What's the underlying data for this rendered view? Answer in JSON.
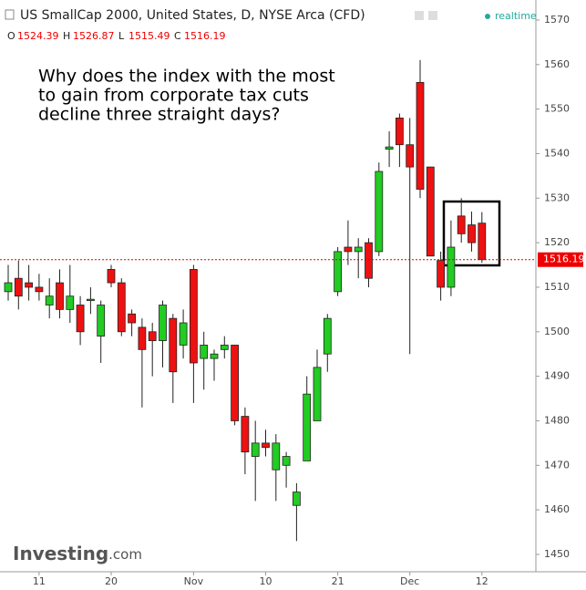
{
  "chart_data": {
    "type": "candlestick",
    "title": "US SmallCap 2000, United States, D, NYSE Arca (CFD)",
    "status": "realtime",
    "ohlc_labels": [
      "O",
      "H",
      "L",
      "C"
    ],
    "annotation": [
      "Why does the index with the most",
      "to gain from corporate tax cuts",
      "decline three straight days?"
    ],
    "watermark": [
      "Investing",
      ".com"
    ],
    "categories": [
      null,
      null,
      null,
      "11",
      null,
      null,
      null,
      null,
      null,
      null,
      "20",
      null,
      null,
      null,
      null,
      null,
      null,
      null,
      "Nov",
      null,
      null,
      null,
      null,
      null,
      null,
      "10",
      null,
      null,
      null,
      null,
      null,
      null,
      "21",
      null,
      null,
      null,
      null,
      null,
      null,
      "Dec",
      null,
      null,
      null,
      null,
      null,
      null,
      "12"
    ],
    "open": [
      1509,
      1512,
      1511,
      1510,
      1506,
      1511,
      1505,
      1506,
      1507,
      1499,
      1514,
      1511,
      1504,
      1501,
      1500,
      1498,
      1503,
      1497,
      1514,
      1494,
      1494,
      1496,
      1497,
      1481,
      1472,
      1475,
      1469,
      1470,
      1461,
      1471,
      1480,
      1495,
      1509,
      1519,
      1518,
      1520,
      1518,
      1541,
      1548,
      1542,
      1556,
      1537,
      1516,
      1510,
      1526,
      1524,
      1524.39
    ],
    "high": [
      1515,
      1516,
      1515,
      1513,
      1512,
      1514,
      1515,
      1508,
      1510,
      1507,
      1515,
      1512,
      1505,
      1503,
      1502,
      1507,
      1504,
      1505,
      1515,
      1500,
      1496,
      1499,
      1497,
      1483,
      1480,
      1478,
      1477,
      1473,
      1466,
      1490,
      1496,
      1504,
      1519,
      1525,
      1521,
      1521,
      1538,
      1545,
      1549,
      1548,
      1561,
      1537,
      1518,
      1525,
      1530,
      1527,
      1526.87
    ],
    "low": [
      1507,
      1505,
      1507,
      1507,
      1503,
      1503,
      1502,
      1497,
      1504,
      1493,
      1510,
      1499,
      1499,
      1483,
      1490,
      1492,
      1484,
      1494,
      1484,
      1487,
      1489,
      1494,
      1479,
      1468,
      1462,
      1472,
      1462,
      1465,
      1453,
      1471,
      1480,
      1491,
      1508,
      1515,
      1512,
      1510,
      1517,
      1537,
      1537,
      1495,
      1530,
      1517,
      1507,
      1508,
      1520,
      1518,
      1515.49
    ],
    "close": [
      1511,
      1508,
      1510,
      1509,
      1508,
      1505,
      1508,
      1500,
      1507.3,
      1506,
      1511,
      1500,
      1502,
      1496,
      1498,
      1506,
      1491,
      1502,
      1493,
      1497,
      1495,
      1497,
      1480,
      1473,
      1475,
      1474,
      1475,
      1472,
      1464,
      1486,
      1492,
      1503,
      1518,
      1518,
      1519,
      1512,
      1536,
      1541.5,
      1542,
      1537,
      1532,
      1517,
      1510,
      1519,
      1522,
      1520,
      1516.19
    ],
    "up_color": "#22cc22",
    "down_color": "#ee1111",
    "ylim": [
      1446.1,
      1574.5
    ],
    "yticks": [
      1450,
      1460,
      1470,
      1480,
      1490,
      1500,
      1510,
      1520,
      1530,
      1540,
      1550,
      1560,
      1570
    ]
  }
}
